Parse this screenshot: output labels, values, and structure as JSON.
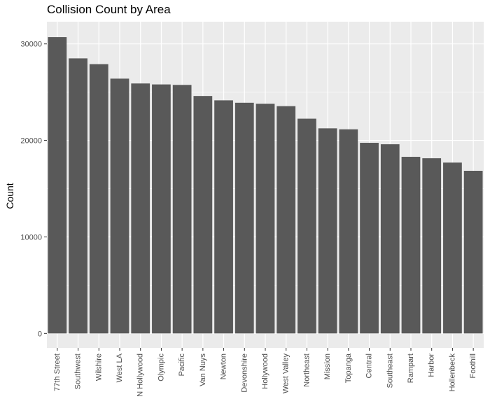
{
  "chart_data": {
    "type": "bar",
    "title": "Collision Count by Area",
    "xlabel": "",
    "ylabel": "Count",
    "categories": [
      "77th Street",
      "Southwest",
      "Wilshire",
      "West LA",
      "N Hollywood",
      "Olympic",
      "Pacific",
      "Van Nuys",
      "Newton",
      "Devonshire",
      "Hollywood",
      "West Valley",
      "Northeast",
      "Mission",
      "Topanga",
      "Central",
      "Southeast",
      "Rampart",
      "Harbor",
      "Hollenbeck",
      "Foothill"
    ],
    "values": [
      30700,
      28500,
      27900,
      26400,
      25900,
      25800,
      25750,
      24600,
      24150,
      23900,
      23800,
      23550,
      22250,
      21250,
      21150,
      19750,
      19600,
      18300,
      18150,
      17700,
      16850
    ],
    "yticks": [
      0,
      10000,
      20000,
      30000
    ],
    "ylim": [
      -1500,
      32300
    ],
    "grid": true,
    "bar_color": "#595959",
    "panel_color": "#ebebeb",
    "grid_color": "#ffffff"
  }
}
